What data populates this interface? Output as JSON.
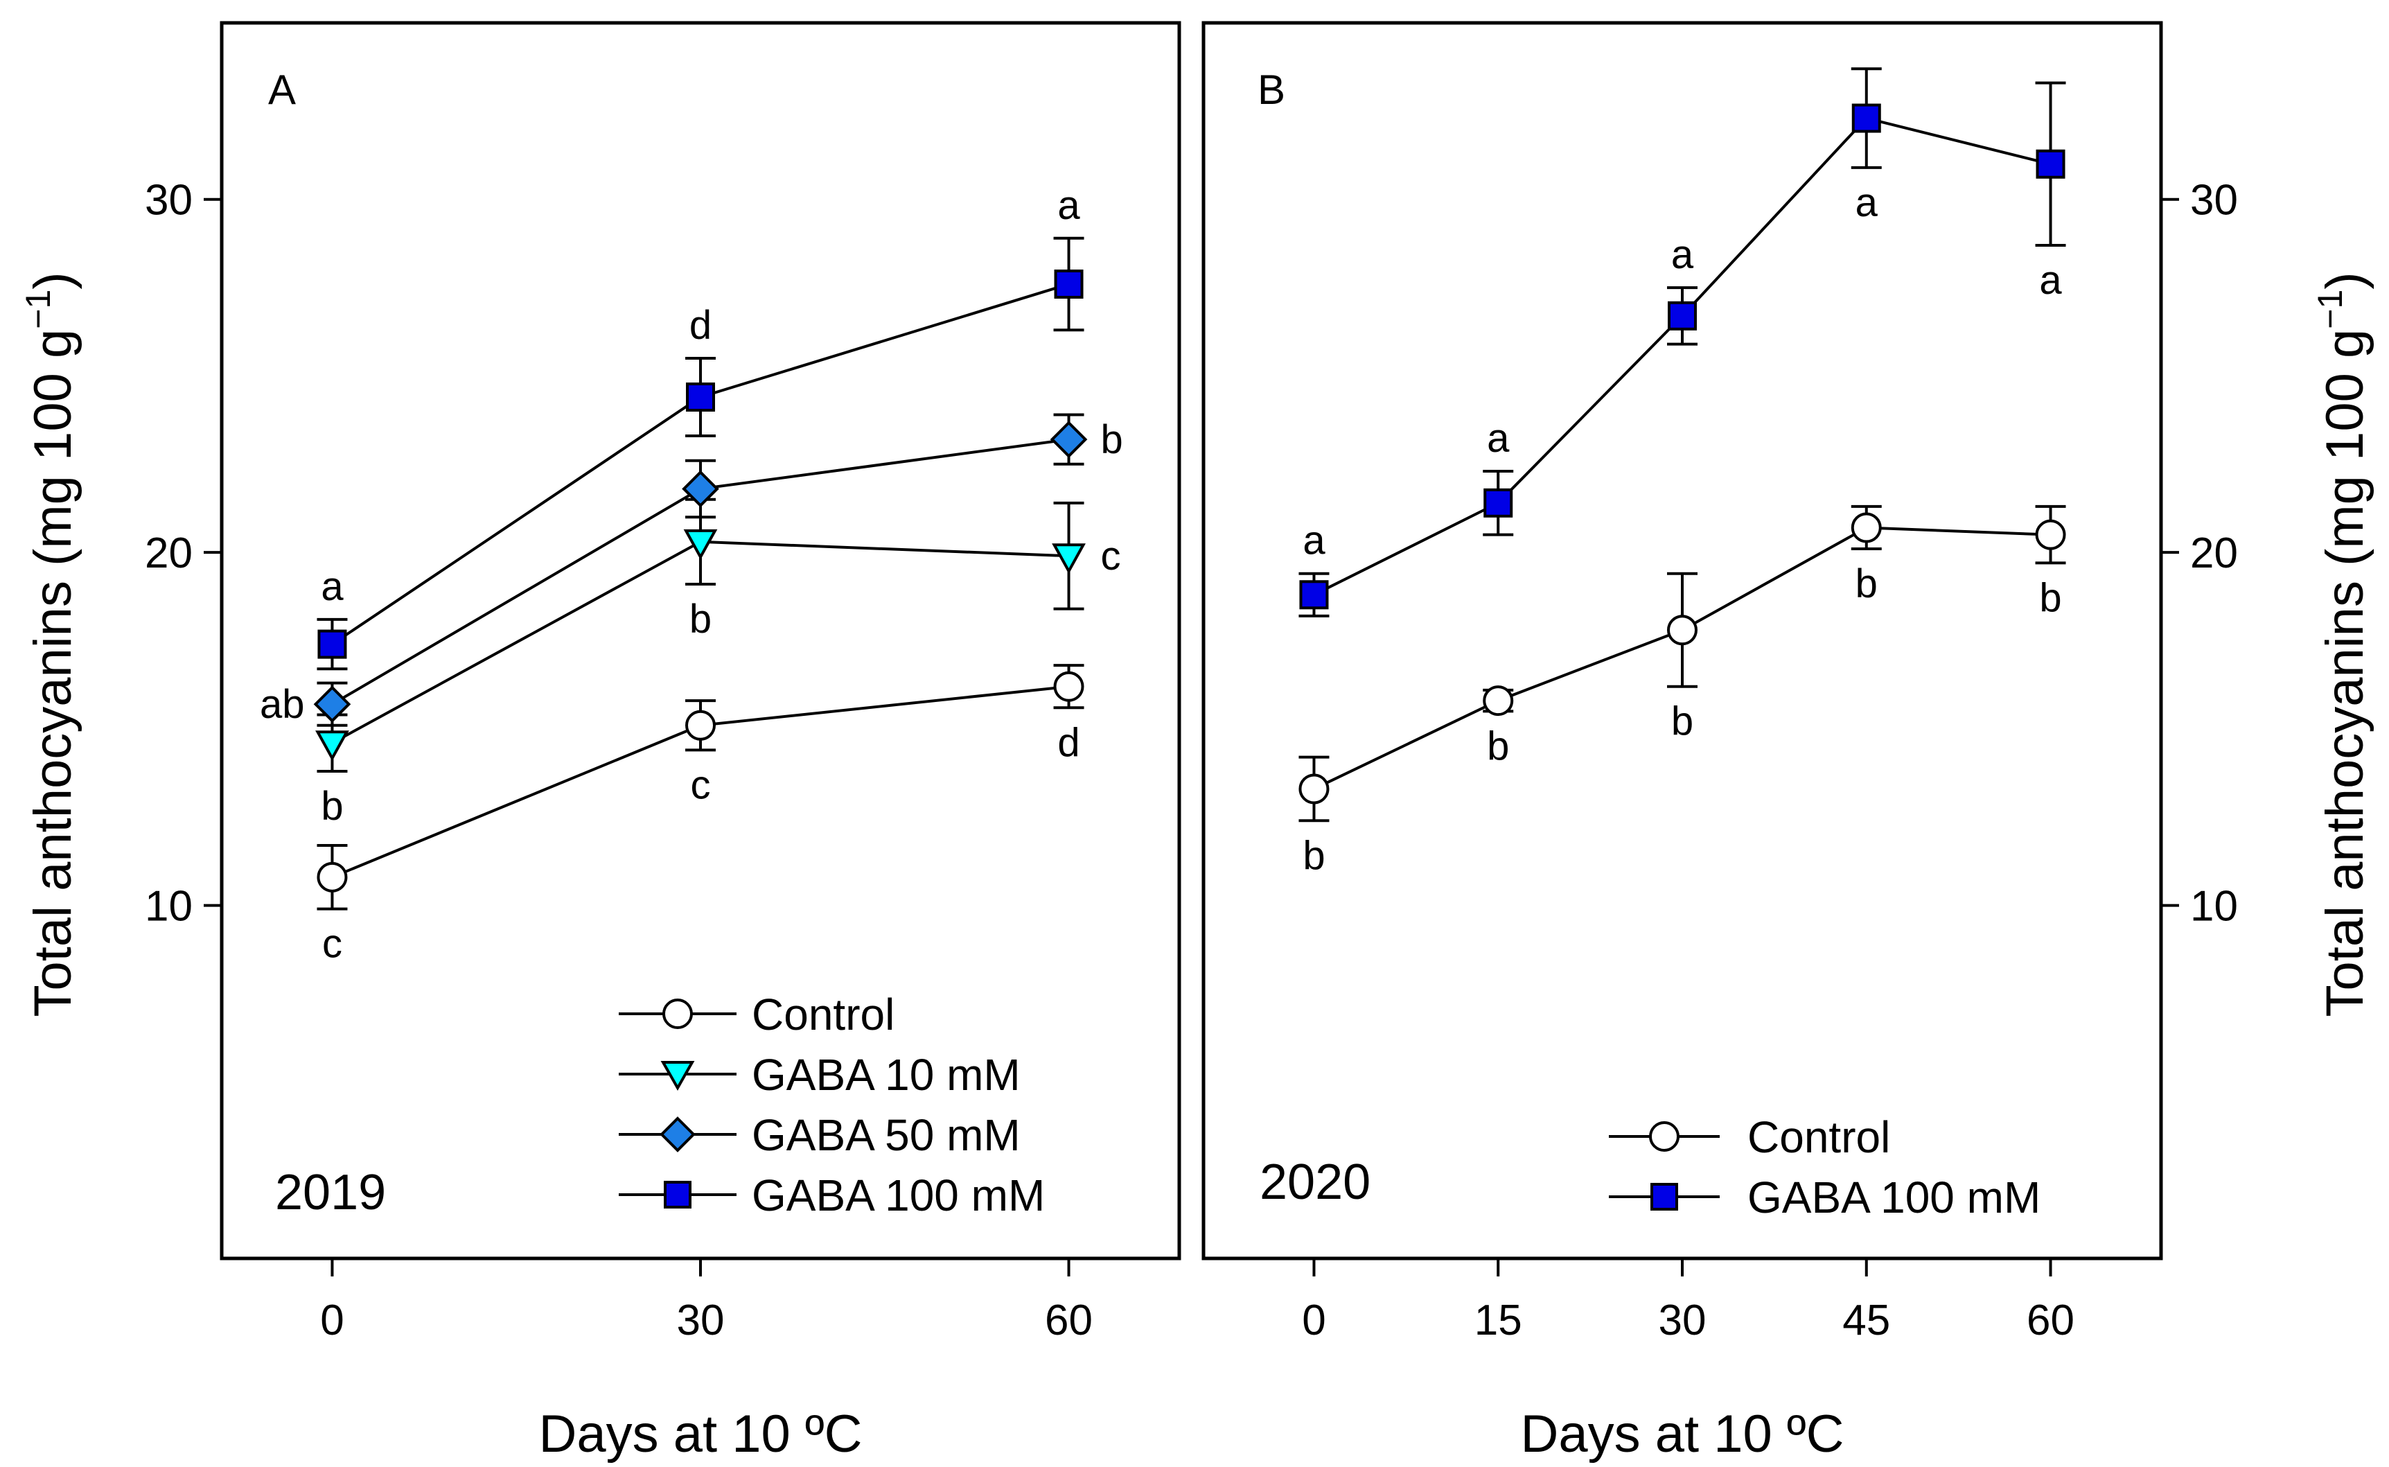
{
  "y_axis_title": "Total anthocyanins (mg 100 g",
  "y_axis_superscript": "−1",
  "y_axis_close": ")",
  "chart_data": [
    {
      "type": "line",
      "panel": "A",
      "year": "2019",
      "xlabel": "Days at 10 ºC",
      "ylabel": "Total anthocyanins (mg 100 g−1)",
      "x": [
        0,
        30,
        60
      ],
      "x_ticks": [
        0,
        30,
        60
      ],
      "xlim": [
        -9,
        69
      ],
      "ylim": [
        0,
        35
      ],
      "y_ticks": [
        10,
        20,
        30
      ],
      "series": [
        {
          "name": "Control",
          "marker": "circle",
          "fill": "#ffffff",
          "values": [
            10.8,
            15.1,
            16.2
          ],
          "errors": [
            0.9,
            0.7,
            0.6
          ],
          "letters": [
            "c",
            "c",
            "d"
          ],
          "letter_pos": [
            "below",
            "below",
            "below"
          ]
        },
        {
          "name": "GABA 10 mM",
          "marker": "triangle-down",
          "fill": "#00ffff",
          "values": [
            14.6,
            20.3,
            19.9
          ],
          "errors": [
            0.8,
            1.2,
            1.5
          ],
          "letters": [
            "b",
            "b",
            "c"
          ],
          "letter_pos": [
            "below",
            "below",
            "right"
          ]
        },
        {
          "name": "GABA 50 mM",
          "marker": "diamond",
          "fill": "#1e7fe6",
          "values": [
            15.7,
            21.8,
            23.2
          ],
          "errors": [
            0.6,
            0.8,
            0.7
          ],
          "letters": [
            "ab",
            "",
            "b"
          ],
          "letter_pos": [
            "left",
            "none",
            "right"
          ]
        },
        {
          "name": "GABA 100 mM",
          "marker": "square",
          "fill": "#0000e6",
          "values": [
            17.4,
            24.4,
            27.6
          ],
          "errors": [
            0.7,
            1.1,
            1.3
          ],
          "letters": [
            "a",
            "d",
            "a"
          ],
          "letter_pos": [
            "above",
            "above",
            "above"
          ]
        }
      ]
    },
    {
      "type": "line",
      "panel": "B",
      "year": "2020",
      "xlabel": "Days at 10 ºC",
      "ylabel": "Total anthocyanins (mg 100 g−1)",
      "x": [
        0,
        15,
        30,
        45,
        60
      ],
      "x_ticks": [
        0,
        15,
        30,
        45,
        60
      ],
      "xlim": [
        -9,
        69
      ],
      "ylim": [
        0,
        35
      ],
      "y_ticks": [
        10,
        20,
        30
      ],
      "series": [
        {
          "name": "Control",
          "marker": "circle",
          "fill": "#ffffff",
          "values": [
            13.3,
            15.8,
            17.8,
            20.7,
            20.5
          ],
          "errors": [
            0.9,
            0.3,
            1.6,
            0.6,
            0.8
          ],
          "letters": [
            "b",
            "b",
            "b",
            "b",
            "b"
          ],
          "letter_pos": [
            "below",
            "below",
            "below",
            "below",
            "below"
          ]
        },
        {
          "name": "GABA 100 mM",
          "marker": "square",
          "fill": "#0000e6",
          "values": [
            18.8,
            21.4,
            26.7,
            32.3,
            31.0
          ],
          "errors": [
            0.6,
            0.9,
            0.8,
            1.4,
            2.3
          ],
          "letters": [
            "a",
            "a",
            "a",
            "a",
            "a"
          ],
          "letter_pos": [
            "above",
            "above",
            "above",
            "below",
            "below"
          ]
        }
      ]
    }
  ]
}
